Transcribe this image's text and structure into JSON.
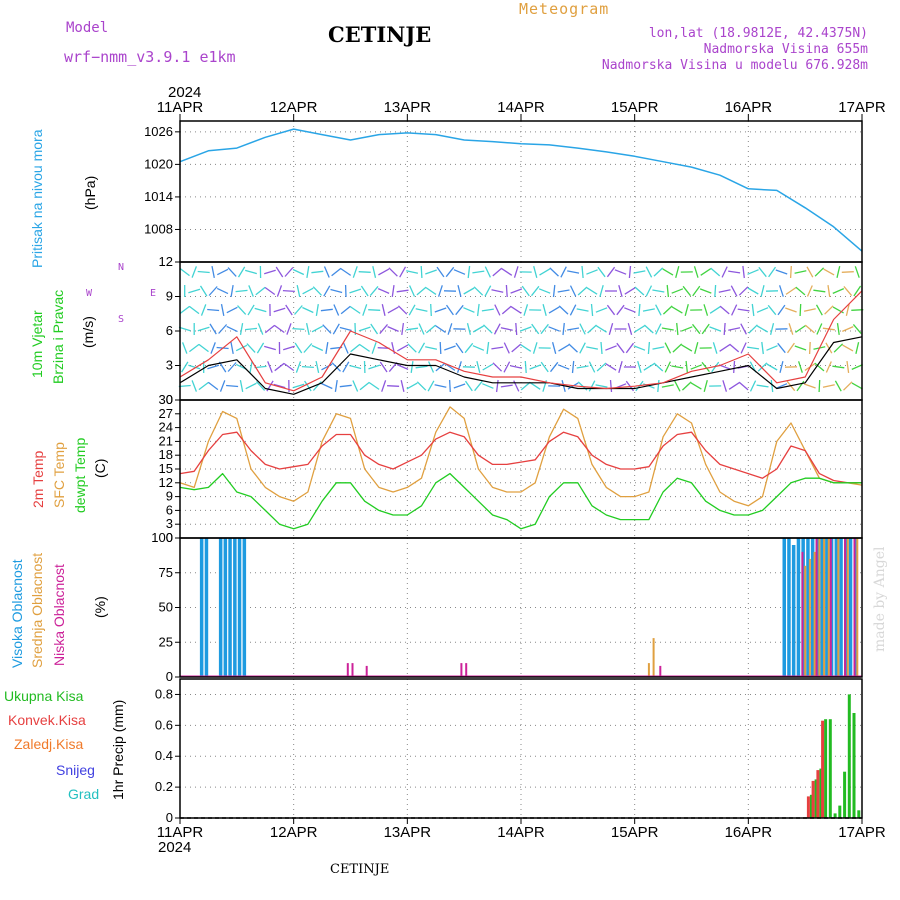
{
  "header": {
    "model_label": "Model",
    "model_value": "wrf−nmm_v3.9.1  e1km",
    "station": "CETINJE",
    "product": "Meteogram",
    "lonlat": "lon,lat (18.9812E, 42.4375N)",
    "elevation": "Nadmorska Visina 655m",
    "model_elevation": "Nadmorska Visina u modelu 676.928m",
    "year": "2024",
    "footer_station": "CETINJE",
    "credit": "made by Angel"
  },
  "colors": {
    "pressure": "#2aa5e6",
    "temp2m": "#e64040",
    "sfc_temp": "#e0a040",
    "dewpt": "#22cc22",
    "wind_speed": "#000000",
    "gust": "#e64040",
    "high_cloud": "#1e9be0",
    "mid_cloud": "#e0a040",
    "low_cloud": "#cc2299",
    "total_precip": "#22bb22",
    "conv_precip": "#e64040",
    "frozen_precip": "#f07a2a",
    "snow": "#4040e0",
    "hail": "#22c0c0"
  },
  "xaxis": {
    "start": "2024-04-11T00",
    "end": "2024-04-17T00",
    "tick_labels": [
      "11APR",
      "12APR",
      "13APR",
      "14APR",
      "15APR",
      "16APR",
      "17APR"
    ]
  },
  "chart_data": [
    {
      "type": "line",
      "panel": "pressure",
      "ylabel": [
        "Pritisak na nivou mora",
        "(hPa)"
      ],
      "ylim": [
        1002,
        1028
      ],
      "yticks": [
        1008,
        1014,
        1020,
        1026
      ],
      "grid": true,
      "series": [
        {
          "name": "Pritisak na nivou mora",
          "x_hours": [
            0,
            6,
            12,
            18,
            24,
            30,
            36,
            42,
            48,
            54,
            60,
            66,
            72,
            78,
            84,
            90,
            96,
            102,
            108,
            114,
            120,
            126,
            132,
            138,
            144
          ],
          "values": [
            1020.5,
            1022.5,
            1023,
            1025,
            1026.5,
            1025.5,
            1024.5,
            1025.5,
            1025.8,
            1025.5,
            1024.5,
            1024.2,
            1023.8,
            1023.6,
            1023,
            1022.3,
            1021.5,
            1020.5,
            1019.5,
            1018,
            1015.5,
            1015.2,
            1012,
            1008.5,
            1004
          ]
        }
      ]
    },
    {
      "type": "line",
      "panel": "wind",
      "ylabel": [
        "10m Vjetar",
        "Brzina i Pravac",
        "(m/s)"
      ],
      "compass": {
        "n": "N",
        "s": "S",
        "w": "W",
        "e": "E"
      },
      "ylim": [
        0,
        12
      ],
      "yticks": [
        0,
        3,
        6,
        9,
        12
      ],
      "grid": true,
      "series": [
        {
          "name": "Brzina",
          "x_hours": [
            0,
            6,
            12,
            18,
            24,
            30,
            36,
            42,
            48,
            54,
            60,
            66,
            72,
            78,
            84,
            90,
            96,
            102,
            108,
            114,
            120,
            126,
            132,
            138,
            144
          ],
          "values": [
            1.5,
            3,
            3.5,
            1,
            0.5,
            1.5,
            4,
            3.5,
            3,
            3,
            2,
            1.5,
            1.5,
            1.5,
            1,
            1,
            1,
            1.5,
            2,
            2.5,
            3,
            1,
            1.5,
            5,
            5.5
          ]
        },
        {
          "name": "Udar",
          "x_hours": [
            0,
            6,
            12,
            18,
            24,
            30,
            36,
            42,
            48,
            54,
            60,
            66,
            72,
            78,
            84,
            90,
            96,
            102,
            108,
            114,
            120,
            126,
            132,
            138,
            144
          ],
          "values": [
            2,
            3.5,
            5.5,
            1.5,
            0.8,
            2,
            6,
            5,
            3.5,
            3.5,
            2.5,
            2,
            2,
            1.5,
            1.2,
            1,
            1.2,
            1.5,
            2.5,
            3,
            4,
            1.5,
            2,
            7,
            9.5
          ]
        }
      ]
    },
    {
      "type": "line",
      "panel": "temperature",
      "ylabel": [
        "2m Temp",
        "SFC Temp",
        "dewpt Temp",
        "(C)"
      ],
      "ylim": [
        0,
        30
      ],
      "yticks": [
        0,
        3,
        6,
        9,
        12,
        15,
        18,
        21,
        24,
        27,
        30
      ],
      "grid": true,
      "series": [
        {
          "name": "2m Temp",
          "x_hours": [
            0,
            3,
            6,
            9,
            12,
            15,
            18,
            21,
            24,
            27,
            30,
            33,
            36,
            39,
            42,
            45,
            48,
            51,
            54,
            57,
            60,
            63,
            66,
            69,
            72,
            75,
            78,
            81,
            84,
            87,
            90,
            93,
            96,
            99,
            102,
            105,
            108,
            111,
            114,
            117,
            120,
            123,
            126,
            129,
            132,
            135,
            138,
            141,
            144
          ],
          "values": [
            14,
            14.5,
            19,
            22.5,
            23,
            19,
            16,
            15,
            15.5,
            16,
            20,
            22.5,
            22.5,
            18,
            16,
            15,
            16.5,
            18,
            21.5,
            23,
            22,
            18,
            16,
            16,
            16.5,
            17,
            21,
            23,
            22,
            18,
            16,
            15,
            15,
            15.5,
            20,
            22.5,
            23,
            19,
            16,
            15,
            14,
            13,
            15,
            20,
            19,
            14,
            12.5,
            12,
            12
          ]
        },
        {
          "name": "SFC Temp",
          "x_hours": [
            0,
            3,
            6,
            9,
            12,
            15,
            18,
            21,
            24,
            27,
            30,
            33,
            36,
            39,
            42,
            45,
            48,
            51,
            54,
            57,
            60,
            63,
            66,
            69,
            72,
            75,
            78,
            81,
            84,
            87,
            90,
            93,
            96,
            99,
            102,
            105,
            108,
            111,
            114,
            117,
            120,
            123,
            126,
            129,
            132,
            135,
            138,
            141,
            144
          ],
          "values": [
            12,
            11,
            21,
            27.5,
            26,
            15,
            11,
            9,
            8,
            10,
            21,
            27,
            26,
            15,
            11,
            10,
            11,
            13,
            23,
            28.5,
            26,
            15,
            11,
            10,
            10,
            12,
            22,
            28,
            26,
            16,
            11,
            9,
            9,
            10,
            22,
            27,
            25,
            16,
            10,
            8,
            7,
            9,
            21,
            25,
            19,
            13,
            12,
            12,
            11.5
          ]
        },
        {
          "name": "dewpt Temp",
          "x_hours": [
            0,
            3,
            6,
            9,
            12,
            15,
            18,
            21,
            24,
            27,
            30,
            33,
            36,
            39,
            42,
            45,
            48,
            51,
            54,
            57,
            60,
            63,
            66,
            69,
            72,
            75,
            78,
            81,
            84,
            87,
            90,
            93,
            96,
            99,
            102,
            105,
            108,
            111,
            114,
            117,
            120,
            123,
            126,
            129,
            132,
            135,
            138,
            141,
            144
          ],
          "values": [
            11,
            10.5,
            11,
            14,
            10,
            9,
            6,
            3,
            2,
            3,
            8,
            12,
            12,
            8,
            6,
            5,
            5,
            7,
            12,
            14,
            11,
            8,
            5,
            4,
            2,
            3,
            9,
            12,
            12,
            7,
            5,
            4,
            4,
            4,
            10,
            13,
            12,
            8,
            6,
            5,
            5,
            6,
            9,
            12,
            13,
            13,
            12,
            12,
            12
          ]
        }
      ]
    },
    {
      "type": "bar",
      "panel": "cloud",
      "ylabel": [
        "Visoka Oblacnost",
        "Srednja Oblacnost",
        "Niska Oblacnost",
        "(%)"
      ],
      "ylim": [
        0,
        100
      ],
      "yticks": [
        0,
        25,
        50,
        75,
        100
      ],
      "grid": true,
      "series": [
        {
          "name": "Visoka Oblacnost",
          "x_hours": [
            5,
            6,
            9,
            10,
            11,
            12,
            13,
            14,
            128,
            129,
            130,
            131,
            132,
            133,
            134,
            135,
            136,
            137,
            138,
            139,
            140,
            141,
            142,
            143
          ],
          "values": [
            100,
            100,
            100,
            100,
            100,
            100,
            100,
            100,
            100,
            100,
            95,
            100,
            100,
            100,
            100,
            100,
            100,
            100,
            100,
            100,
            100,
            100,
            100,
            100
          ]
        },
        {
          "name": "Srednja Oblacnost",
          "x_hours": [
            99,
            100,
            132,
            133,
            134,
            135,
            136,
            137,
            139,
            141,
            143
          ],
          "values": [
            10,
            28,
            80,
            85,
            90,
            100,
            100,
            100,
            100,
            100,
            100
          ]
        },
        {
          "name": "Niska Oblacnost",
          "x_hours": [
            35,
            36,
            39,
            59,
            60,
            101,
            131,
            134,
            137,
            140,
            142
          ],
          "values": [
            10,
            10,
            8,
            10,
            10,
            8,
            90,
            100,
            100,
            100,
            100
          ]
        }
      ]
    },
    {
      "type": "bar",
      "panel": "precip",
      "ylabel": [
        "Ukupna Kisa",
        "Konvek.Kisa",
        "Zaledj.Kisa",
        "Snijeg",
        "Grad",
        "1hr Precip (mm)"
      ],
      "ylim": [
        0,
        0.9
      ],
      "yticks": [
        0,
        0.2,
        0.4,
        0.6,
        0.8
      ],
      "grid": true,
      "series": [
        {
          "name": "Ukupna Kisa",
          "x_hours": [
            133,
            134,
            135,
            136,
            137,
            138,
            139,
            140,
            141,
            142,
            143
          ],
          "values": [
            0.15,
            0.25,
            0.32,
            0.64,
            0.64,
            0.03,
            0.08,
            0.3,
            0.8,
            0.68,
            0.05
          ]
        },
        {
          "name": "Konvek.Kisa",
          "x_hours": [
            133,
            134,
            135,
            136
          ],
          "values": [
            0.14,
            0.24,
            0.31,
            0.63
          ]
        }
      ]
    }
  ]
}
